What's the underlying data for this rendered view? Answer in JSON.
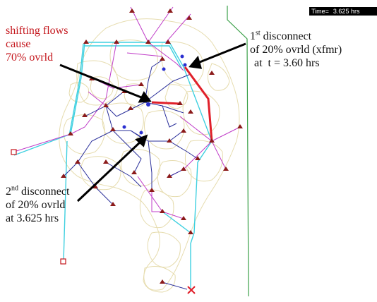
{
  "time_readout": {
    "label": "Time=",
    "value": "3.625 hrs"
  },
  "annotations": {
    "shifting": {
      "line1": "shifting flows",
      "line2": "cause",
      "line3": "70% ovrld"
    },
    "first": {
      "ordinal_num": "1",
      "ordinal_suffix": "st",
      "line1_rest": " disconnect",
      "line2": "of 20% ovrld (xfmr)",
      "line3": "at  t = 3.60 hrs"
    },
    "second": {
      "ordinal_num": "2",
      "ordinal_suffix": "nd",
      "line1_rest": " disconnect",
      "line2": "of 20% ovrld",
      "line3": "at 3.625 hrs"
    }
  },
  "colors": {
    "region_outline": "#e6dcae",
    "line_blue": "#2a2f9a",
    "line_magenta": "#c03cc8",
    "line_cyan": "#3fd0e0",
    "line_overload": "#e0202a",
    "bus_marker": "#8b1a1a",
    "boundary_green": "#3aa048",
    "annotation_red": "#c4161c"
  },
  "icons": {
    "bus": "triangle-marker",
    "generator": "square-marker",
    "tripped": "x-marker",
    "bus_node": "circle-marker"
  }
}
